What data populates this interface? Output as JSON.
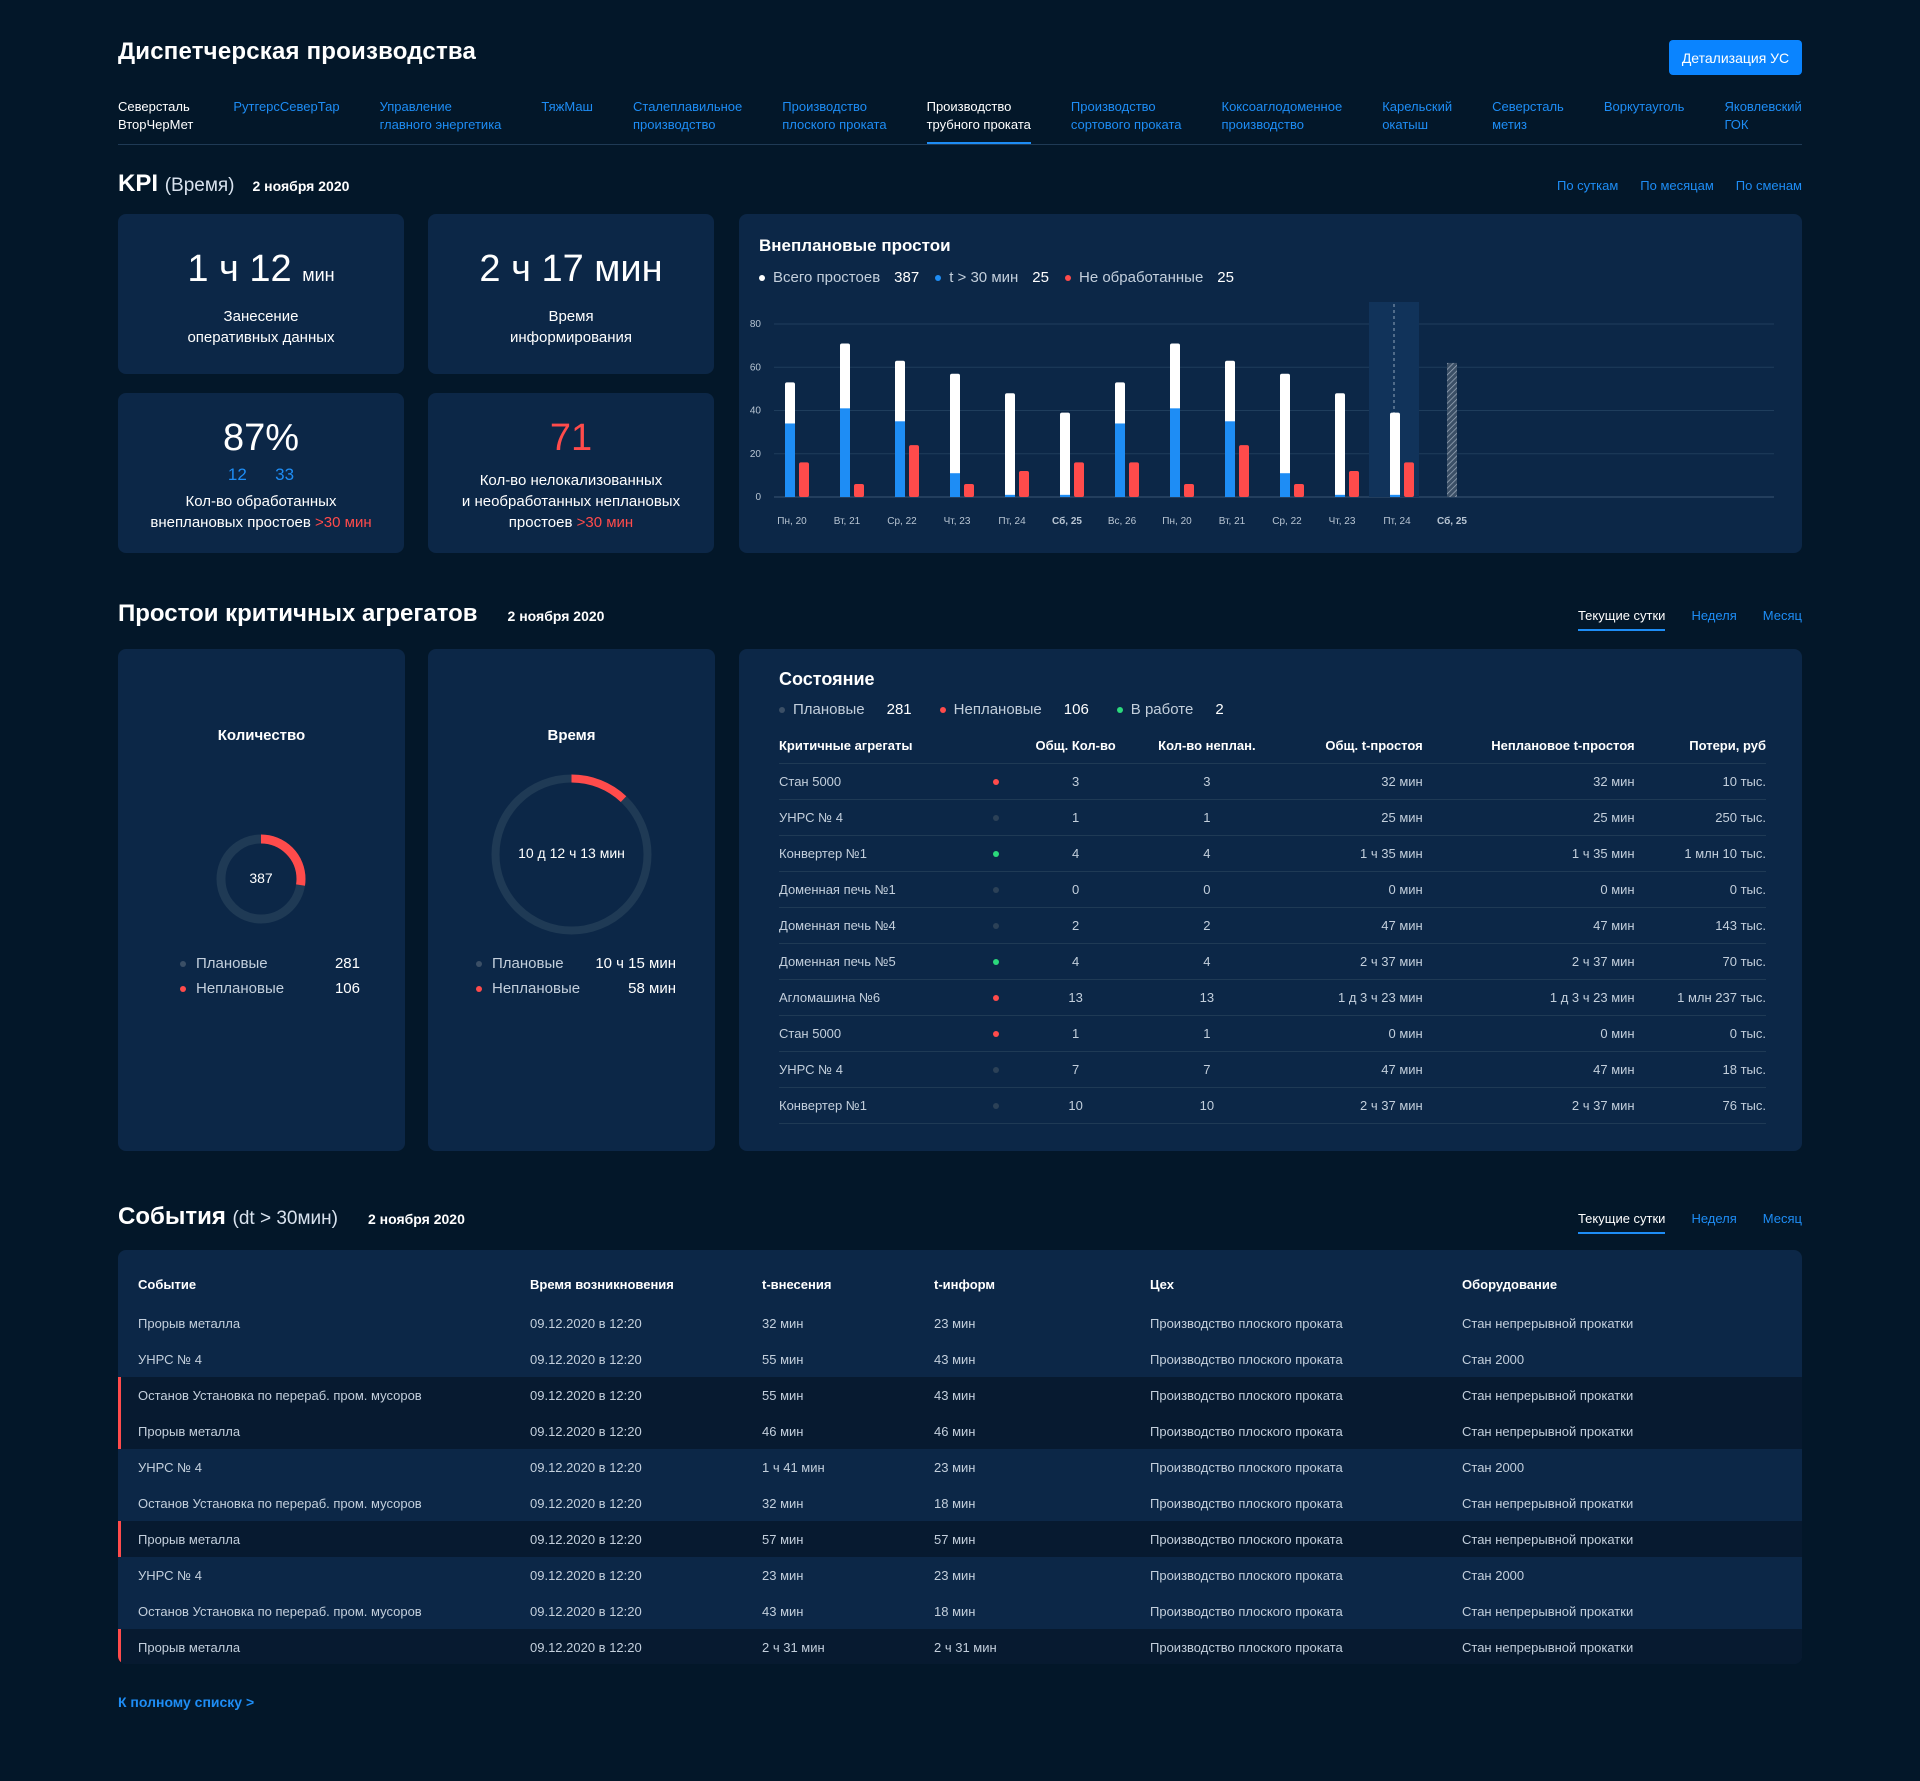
{
  "header": {
    "title": "Диспетчерская производства",
    "detail_button": "Детализация УС"
  },
  "nav": [
    {
      "label": "Северсталь\nВторЧерМет",
      "style": "white"
    },
    {
      "label": "РутгерсСеверТар",
      "style": "link"
    },
    {
      "label": "Управление\nглавного энергетика",
      "style": "link"
    },
    {
      "label": "ТяжМаш",
      "style": "link"
    },
    {
      "label": "Сталеплавильное\nпроизводство",
      "style": "link"
    },
    {
      "label": "Производство\nплоского проката",
      "style": "link"
    },
    {
      "label": "Производство\nтрубного проката",
      "style": "active"
    },
    {
      "label": "Производство\nсортового проката",
      "style": "link"
    },
    {
      "label": "Коксоаглодоменное\nпроизводство",
      "style": "link"
    },
    {
      "label": "Карельский\nокатыш",
      "style": "link"
    },
    {
      "label": "Северсталь\nметиз",
      "style": "link"
    },
    {
      "label": "Воркутауголь",
      "style": "link"
    },
    {
      "label": "Яковлевский\nГОК",
      "style": "link"
    }
  ],
  "kpi": {
    "title": "KPI",
    "subtitle": "(Время)",
    "date": "2 ноября 2020",
    "periods": [
      "По суткам",
      "По месяцам",
      "По сменам"
    ],
    "card1": {
      "value": "1 ч 12",
      "unit": "мин",
      "caption1": "Занесение",
      "caption2": "оперативных данных"
    },
    "card2": {
      "value": "2 ч 17 мин",
      "caption1": "Время",
      "caption2": "информирования"
    },
    "card3": {
      "value": "87%",
      "sub1": "12",
      "sub2": "33",
      "caption1": "Кол-во обработанных",
      "caption2": "внеплановых простоев",
      "caption_red": ">30 мин"
    },
    "card4": {
      "value": "71",
      "caption1": "Кол-во нелокализованных",
      "caption2": "и необработанных неплановых",
      "caption3": "простоев",
      "caption_red": ">30 мин"
    }
  },
  "downtime_chart": {
    "title": "Внеплановые простои",
    "legend": [
      {
        "label": "Всего простоев",
        "value": "387",
        "color": "#ffffff"
      },
      {
        "label": "t > 30 мин",
        "value": "25",
        "color": "#1e8df5"
      },
      {
        "label": "Не обработанные",
        "value": "25",
        "color": "#ff4b4b"
      }
    ]
  },
  "chart_data": {
    "type": "bar",
    "title": "Внеплановые простои",
    "categories": [
      "Пн, 20",
      "Вт, 21",
      "Ср, 22",
      "Чт, 23",
      "Пт, 24",
      "Сб, 25",
      "Вс, 26",
      "Пн, 20",
      "Вт, 21",
      "Ср, 22",
      "Чт, 23",
      "Пт, 24",
      "Сб, 25"
    ],
    "bold_categories": [
      5,
      12
    ],
    "ylim": [
      0,
      80
    ],
    "yticks": [
      0,
      20,
      40,
      60,
      80
    ],
    "series": [
      {
        "name": "Всего простоев",
        "color": "#ffffff",
        "values": [
          53,
          71,
          63,
          57,
          48,
          39,
          53,
          71,
          63,
          57,
          48,
          39,
          62
        ]
      },
      {
        "name": "t > 30 мин",
        "color": "#1e8df5",
        "values": [
          34,
          41,
          35,
          11,
          1,
          1,
          34,
          41,
          35,
          11,
          1,
          1,
          0
        ]
      },
      {
        "name": "Не обработанные",
        "color": "#ff4b4b",
        "values": [
          16,
          6,
          24,
          6,
          12,
          16,
          16,
          6,
          24,
          6,
          12,
          16,
          0
        ]
      }
    ],
    "highlighted_category": 11,
    "hatched_category": 12
  },
  "critical": {
    "title": "Простои критичных агрегатов",
    "date": "2 ноября 2020",
    "tabs": [
      "Текущие сутки",
      "Неделя",
      "Месяц"
    ],
    "count_card": {
      "title": "Количество",
      "center": "387",
      "fraction_unplanned": 0.274,
      "legend": [
        {
          "label": "Плановые",
          "value": "281",
          "color": "#3b4f66"
        },
        {
          "label": "Неплановые",
          "value": "106",
          "color": "#ff4b4b"
        }
      ]
    },
    "time_card": {
      "title": "Время",
      "center": "10 д 12 ч 13 мин",
      "fraction_unplanned": 0.12,
      "legend": [
        {
          "label": "Плановые",
          "value": "10 ч 15 мин",
          "color": "#3b4f66"
        },
        {
          "label": "Неплановые",
          "value": "58 мин",
          "color": "#ff4b4b"
        }
      ]
    },
    "state": {
      "title": "Состояние",
      "legend": [
        {
          "label": "Плановые",
          "value": "281",
          "color": "#3b4f66"
        },
        {
          "label": "Неплановые",
          "value": "106",
          "color": "#ff4b4b"
        },
        {
          "label": "В работе",
          "value": "2",
          "color": "#2bd97c"
        }
      ],
      "columns": [
        "Критичные агрегаты",
        "Общ. Кол-во",
        "Кол-во неплан.",
        "Общ. t-простоя",
        "Неплановое t-простоя",
        "Потери, руб"
      ],
      "rows": [
        {
          "name": "Стан 5000",
          "status": "#ff4b4b",
          "total": "3",
          "unplanned": "3",
          "total_t": "32 мин",
          "unplanned_t": "32 мин",
          "loss": "10 тыс."
        },
        {
          "name": "УНРС № 4",
          "status": "#2c4157",
          "total": "1",
          "unplanned": "1",
          "total_t": "25 мин",
          "unplanned_t": "25 мин",
          "loss": "250 тыс."
        },
        {
          "name": "Конвертер №1",
          "status": "#2bd97c",
          "total": "4",
          "unplanned": "4",
          "total_t": "1 ч 35 мин",
          "unplanned_t": "1 ч 35 мин",
          "loss": "1 млн 10 тыс."
        },
        {
          "name": "Доменная печь №1",
          "status": "#2c4157",
          "total": "0",
          "unplanned": "0",
          "total_t": "0 мин",
          "unplanned_t": "0 мин",
          "loss": "0 тыс."
        },
        {
          "name": "Доменная печь №4",
          "status": "#2c4157",
          "total": "2",
          "unplanned": "2",
          "total_t": "47 мин",
          "unplanned_t": "47 мин",
          "loss": "143 тыс."
        },
        {
          "name": "Доменная печь №5",
          "status": "#2bd97c",
          "total": "4",
          "unplanned": "4",
          "total_t": "2 ч 37 мин",
          "unplanned_t": "2 ч 37 мин",
          "loss": "70 тыс."
        },
        {
          "name": "Агломашина №6",
          "status": "#ff4b4b",
          "total": "13",
          "unplanned": "13",
          "total_t": "1 д 3 ч 23  мин",
          "unplanned_t": "1 д 3 ч 23  мин",
          "loss": "1 млн 237 тыс."
        },
        {
          "name": "Стан 5000",
          "status": "#ff4b4b",
          "total": "1",
          "unplanned": "1",
          "total_t": "0 мин",
          "unplanned_t": "0 мин",
          "loss": "0 тыс."
        },
        {
          "name": "УНРС № 4",
          "status": "#2c4157",
          "total": "7",
          "unplanned": "7",
          "total_t": "47 мин",
          "unplanned_t": "47 мин",
          "loss": "18 тыс."
        },
        {
          "name": "Конвертер №1",
          "status": "#2c4157",
          "total": "10",
          "unplanned": "10",
          "total_t": "2 ч 37 мин",
          "unplanned_t": "2 ч 37 мин",
          "loss": "76 тыс."
        }
      ]
    }
  },
  "events": {
    "title": "События",
    "subtitle": "(dt > 30мин)",
    "date": "2 ноября 2020",
    "tabs": [
      "Текущие сутки",
      "Неделя",
      "Месяц"
    ],
    "columns": [
      "Событие",
      "Время возникновения",
      "t-внесения",
      "t-информ",
      "Цех",
      "Оборудование"
    ],
    "rows": [
      {
        "event": "Прорыв металла",
        "time": "09.12.2020 в 12:20",
        "t_in": "32 мин",
        "t_inf": "23 мин",
        "shop": "Производство плоского проката",
        "equip": "Стан непрерывной прокатки",
        "alert": false
      },
      {
        "event": "УНРС № 4",
        "time": "09.12.2020 в 12:20",
        "t_in": "55 мин",
        "t_inf": "43 мин",
        "shop": "Производство плоского проката",
        "equip": "Стан 2000",
        "alert": false
      },
      {
        "event": "Останов Установка по перераб. пром. мусоров",
        "time": "09.12.2020 в 12:20",
        "t_in": "55 мин",
        "t_inf": "43 мин",
        "shop": "Производство плоского проката",
        "equip": "Стан непрерывной прокатки",
        "alert": true
      },
      {
        "event": "Прорыв металла",
        "time": "09.12.2020 в 12:20",
        "t_in": "46 мин",
        "t_inf": "46 мин",
        "shop": "Производство плоского проката",
        "equip": "Стан непрерывной прокатки",
        "alert": true
      },
      {
        "event": "УНРС № 4",
        "time": "09.12.2020 в 12:20",
        "t_in": "1 ч 41 мин",
        "t_inf": "23 мин",
        "shop": "Производство плоского проката",
        "equip": "Стан 2000",
        "alert": false
      },
      {
        "event": "Останов Установка по перераб. пром. мусоров",
        "time": "09.12.2020 в 12:20",
        "t_in": "32 мин",
        "t_inf": "18 мин",
        "shop": "Производство плоского проката",
        "equip": "Стан непрерывной прокатки",
        "alert": false
      },
      {
        "event": "Прорыв металла",
        "time": "09.12.2020 в 12:20",
        "t_in": "57 мин",
        "t_inf": "57 мин",
        "shop": "Производство плоского проката",
        "equip": "Стан непрерывной прокатки",
        "alert": true
      },
      {
        "event": "УНРС № 4",
        "time": "09.12.2020 в 12:20",
        "t_in": "23 мин",
        "t_inf": "23 мин",
        "shop": "Производство плоского проката",
        "equip": "Стан 2000",
        "alert": false
      },
      {
        "event": "Останов Установка по перераб. пром. мусоров",
        "time": "09.12.2020 в 12:20",
        "t_in": "43 мин",
        "t_inf": "18 мин",
        "shop": "Производство плоского проката",
        "equip": "Стан непрерывной прокатки",
        "alert": false
      },
      {
        "event": "Прорыв металла",
        "time": "09.12.2020 в 12:20",
        "t_in": "2 ч 31 мин",
        "t_inf": "2 ч 31 мин",
        "shop": "Производство плоского проката",
        "equip": "Стан непрерывной прокатки",
        "alert": true
      }
    ],
    "full_list_link": "К полному списку >"
  },
  "colors": {
    "background": "#031729",
    "card": "#0c2747",
    "accent": "#1e8df5",
    "alert": "#ff4b4b",
    "ok": "#2bd97c"
  }
}
